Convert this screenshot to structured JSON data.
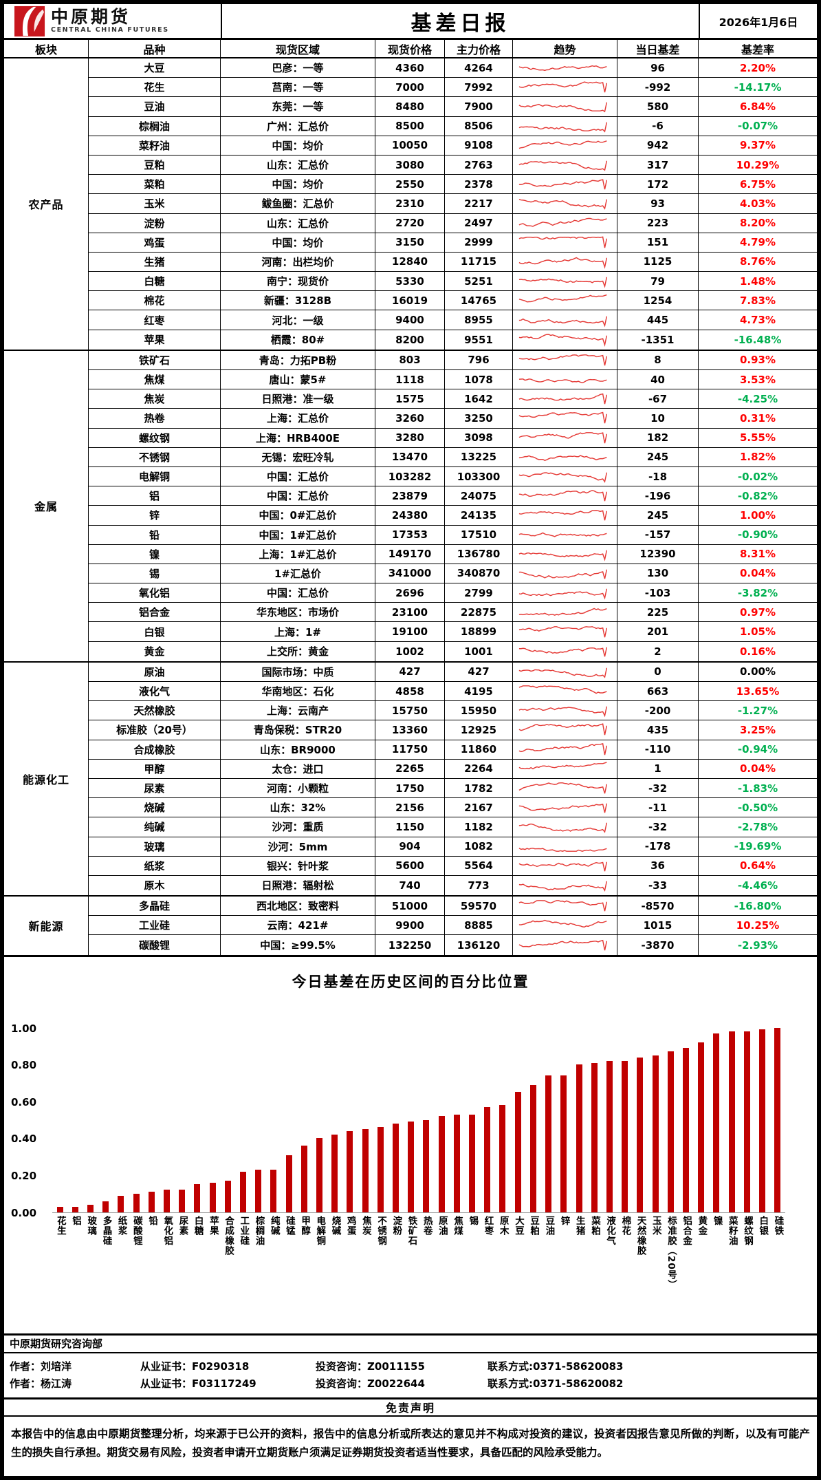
{
  "header": {
    "brand_cn": "中原期货",
    "brand_en": "CENTRAL CHINA FUTURES",
    "title": "基差日报",
    "date": "2026年1月6日"
  },
  "colors": {
    "up_red": "#FF0000",
    "down_green": "#00B050",
    "bar_red": "#C00000",
    "spark_red": "#E53935"
  },
  "table": {
    "columns": [
      "板块",
      "品种",
      "现货区域",
      "现货价格",
      "主力价格",
      "趋势",
      "当日基差",
      "基差率"
    ],
    "sectors": [
      {
        "name": "农产品",
        "rows": [
          {
            "variety": "大豆",
            "region": "巴彦：一等",
            "spot": "4360",
            "main": "4264",
            "basis": "96",
            "rate": "2.20%",
            "rate_color": "red"
          },
          {
            "variety": "花生",
            "region": "莒南：一等",
            "spot": "7000",
            "main": "7992",
            "basis": "-992",
            "rate": "-14.17%",
            "rate_color": "green"
          },
          {
            "variety": "豆油",
            "region": "东莞：一等",
            "spot": "8480",
            "main": "7900",
            "basis": "580",
            "rate": "6.84%",
            "rate_color": "red"
          },
          {
            "variety": "棕榈油",
            "region": "广州：汇总价",
            "spot": "8500",
            "main": "8506",
            "basis": "-6",
            "rate": "-0.07%",
            "rate_color": "green"
          },
          {
            "variety": "菜籽油",
            "region": "中国：均价",
            "spot": "10050",
            "main": "9108",
            "basis": "942",
            "rate": "9.37%",
            "rate_color": "red"
          },
          {
            "variety": "豆粕",
            "region": "山东：汇总价",
            "spot": "3080",
            "main": "2763",
            "basis": "317",
            "rate": "10.29%",
            "rate_color": "red"
          },
          {
            "variety": "菜粕",
            "region": "中国：均价",
            "spot": "2550",
            "main": "2378",
            "basis": "172",
            "rate": "6.75%",
            "rate_color": "red"
          },
          {
            "variety": "玉米",
            "region": "鲅鱼圈：汇总价",
            "spot": "2310",
            "main": "2217",
            "basis": "93",
            "rate": "4.03%",
            "rate_color": "red"
          },
          {
            "variety": "淀粉",
            "region": "山东：汇总价",
            "spot": "2720",
            "main": "2497",
            "basis": "223",
            "rate": "8.20%",
            "rate_color": "red"
          },
          {
            "variety": "鸡蛋",
            "region": "中国：均价",
            "spot": "3150",
            "main": "2999",
            "basis": "151",
            "rate": "4.79%",
            "rate_color": "red"
          },
          {
            "variety": "生猪",
            "region": "河南：出栏均价",
            "spot": "12840",
            "main": "11715",
            "basis": "1125",
            "rate": "8.76%",
            "rate_color": "red"
          },
          {
            "variety": "白糖",
            "region": "南宁：现货价",
            "spot": "5330",
            "main": "5251",
            "basis": "79",
            "rate": "1.48%",
            "rate_color": "red"
          },
          {
            "variety": "棉花",
            "region": "新疆：3128B",
            "spot": "16019",
            "main": "14765",
            "basis": "1254",
            "rate": "7.83%",
            "rate_color": "red"
          },
          {
            "variety": "红枣",
            "region": "河北：一级",
            "spot": "9400",
            "main": "8955",
            "basis": "445",
            "rate": "4.73%",
            "rate_color": "red"
          },
          {
            "variety": "苹果",
            "region": "栖霞：80#",
            "spot": "8200",
            "main": "9551",
            "basis": "-1351",
            "rate": "-16.48%",
            "rate_color": "green"
          }
        ]
      },
      {
        "name": "金属",
        "rows": [
          {
            "variety": "铁矿石",
            "region": "青岛：力拓PB粉",
            "spot": "803",
            "main": "796",
            "basis": "8",
            "rate": "0.93%",
            "rate_color": "red"
          },
          {
            "variety": "焦煤",
            "region": "唐山：蒙5#",
            "spot": "1118",
            "main": "1078",
            "basis": "40",
            "rate": "3.53%",
            "rate_color": "red"
          },
          {
            "variety": "焦炭",
            "region": "日照港：准一级",
            "spot": "1575",
            "main": "1642",
            "basis": "-67",
            "rate": "-4.25%",
            "rate_color": "green"
          },
          {
            "variety": "热卷",
            "region": "上海：汇总价",
            "spot": "3260",
            "main": "3250",
            "basis": "10",
            "rate": "0.31%",
            "rate_color": "red"
          },
          {
            "variety": "螺纹钢",
            "region": "上海：HRB400E",
            "spot": "3280",
            "main": "3098",
            "basis": "182",
            "rate": "5.55%",
            "rate_color": "red"
          },
          {
            "variety": "不锈钢",
            "region": "无锡：宏旺冷轧",
            "spot": "13470",
            "main": "13225",
            "basis": "245",
            "rate": "1.82%",
            "rate_color": "red"
          },
          {
            "variety": "电解铜",
            "region": "中国：汇总价",
            "spot": "103282",
            "main": "103300",
            "basis": "-18",
            "rate": "-0.02%",
            "rate_color": "green"
          },
          {
            "variety": "铝",
            "region": "中国：汇总价",
            "spot": "23879",
            "main": "24075",
            "basis": "-196",
            "rate": "-0.82%",
            "rate_color": "green"
          },
          {
            "variety": "锌",
            "region": "中国：0#汇总价",
            "spot": "24380",
            "main": "24135",
            "basis": "245",
            "rate": "1.00%",
            "rate_color": "red"
          },
          {
            "variety": "铅",
            "region": "中国：1#汇总价",
            "spot": "17353",
            "main": "17510",
            "basis": "-157",
            "rate": "-0.90%",
            "rate_color": "green"
          },
          {
            "variety": "镍",
            "region": "上海：1#汇总价",
            "spot": "149170",
            "main": "136780",
            "basis": "12390",
            "rate": "8.31%",
            "rate_color": "red"
          },
          {
            "variety": "锡",
            "region": "1#汇总价",
            "spot": "341000",
            "main": "340870",
            "basis": "130",
            "rate": "0.04%",
            "rate_color": "red"
          },
          {
            "variety": "氧化铝",
            "region": "中国：汇总价",
            "spot": "2696",
            "main": "2799",
            "basis": "-103",
            "rate": "-3.82%",
            "rate_color": "green"
          },
          {
            "variety": "铝合金",
            "region": "华东地区：市场价",
            "spot": "23100",
            "main": "22875",
            "basis": "225",
            "rate": "0.97%",
            "rate_color": "red"
          },
          {
            "variety": "白银",
            "region": "上海：1#",
            "spot": "19100",
            "main": "18899",
            "basis": "201",
            "rate": "1.05%",
            "rate_color": "red"
          },
          {
            "variety": "黄金",
            "region": "上交所：黄金",
            "spot": "1002",
            "main": "1001",
            "basis": "2",
            "rate": "0.16%",
            "rate_color": "red"
          }
        ]
      },
      {
        "name": "能源化工",
        "rows": [
          {
            "variety": "原油",
            "region": "国际市场：中质",
            "spot": "427",
            "main": "427",
            "basis": "0",
            "rate": "0.00%",
            "rate_color": "black"
          },
          {
            "variety": "液化气",
            "region": "华南地区：石化",
            "spot": "4858",
            "main": "4195",
            "basis": "663",
            "rate": "13.65%",
            "rate_color": "red"
          },
          {
            "variety": "天然橡胶",
            "region": "上海：云南产",
            "spot": "15750",
            "main": "15950",
            "basis": "-200",
            "rate": "-1.27%",
            "rate_color": "green"
          },
          {
            "variety": "标准胶（20号）",
            "region": "青岛保税：STR20",
            "spot": "13360",
            "main": "12925",
            "basis": "435",
            "rate": "3.25%",
            "rate_color": "red"
          },
          {
            "variety": "合成橡胶",
            "region": "山东：BR9000",
            "spot": "11750",
            "main": "11860",
            "basis": "-110",
            "rate": "-0.94%",
            "rate_color": "green"
          },
          {
            "variety": "甲醇",
            "region": "太仓：进口",
            "spot": "2265",
            "main": "2264",
            "basis": "1",
            "rate": "0.04%",
            "rate_color": "red"
          },
          {
            "variety": "尿素",
            "region": "河南：小颗粒",
            "spot": "1750",
            "main": "1782",
            "basis": "-32",
            "rate": "-1.83%",
            "rate_color": "green"
          },
          {
            "variety": "烧碱",
            "region": "山东：32%",
            "spot": "2156",
            "main": "2167",
            "basis": "-11",
            "rate": "-0.50%",
            "rate_color": "green"
          },
          {
            "variety": "纯碱",
            "region": "沙河：重质",
            "spot": "1150",
            "main": "1182",
            "basis": "-32",
            "rate": "-2.78%",
            "rate_color": "green"
          },
          {
            "variety": "玻璃",
            "region": "沙河：5mm",
            "spot": "904",
            "main": "1082",
            "basis": "-178",
            "rate": "-19.69%",
            "rate_color": "green"
          },
          {
            "variety": "纸浆",
            "region": "银兴：针叶浆",
            "spot": "5600",
            "main": "5564",
            "basis": "36",
            "rate": "0.64%",
            "rate_color": "red"
          },
          {
            "variety": "原木",
            "region": "日照港：辐射松",
            "spot": "740",
            "main": "773",
            "basis": "-33",
            "rate": "-4.46%",
            "rate_color": "green"
          }
        ]
      },
      {
        "name": "新能源",
        "rows": [
          {
            "variety": "多晶硅",
            "region": "西北地区：致密料",
            "spot": "51000",
            "main": "59570",
            "basis": "-8570",
            "rate": "-16.80%",
            "rate_color": "green"
          },
          {
            "variety": "工业硅",
            "region": "云南：421#",
            "spot": "9900",
            "main": "8885",
            "basis": "1015",
            "rate": "10.25%",
            "rate_color": "red"
          },
          {
            "variety": "碳酸锂",
            "region": "中国：≥99.5%",
            "spot": "132250",
            "main": "136120",
            "basis": "-3870",
            "rate": "-2.93%",
            "rate_color": "green"
          }
        ]
      }
    ]
  },
  "chart_data": {
    "type": "bar",
    "title": "今日基差在历史区间的百分比位置",
    "xlabel": "",
    "ylabel": "",
    "ylim": [
      0,
      1
    ],
    "yticks": [
      "0.00",
      "0.20",
      "0.40",
      "0.60",
      "0.80",
      "1.00"
    ],
    "grid": false,
    "legend": "none",
    "bar_color": "#C00000",
    "categories": [
      "花生",
      "铝",
      "玻璃",
      "多晶硅",
      "纸浆",
      "碳酸锂",
      "铅",
      "氧化铝",
      "尿素",
      "白糖",
      "苹果",
      "合成橡胶",
      "工业硅",
      "棕榈油",
      "纯碱",
      "硅锰",
      "甲醇",
      "电解铜",
      "烧碱",
      "鸡蛋",
      "焦炭",
      "不锈钢",
      "淀粉",
      "铁矿石",
      "热卷",
      "原油",
      "焦煤",
      "锡",
      "红枣",
      "原木",
      "大豆",
      "豆粕",
      "豆油",
      "锌",
      "生猪",
      "菜粕",
      "液化气",
      "棉花",
      "天然橡胶",
      "玉米",
      "标准胶（20号）",
      "铝合金",
      "黄金",
      "镍",
      "菜籽油",
      "螺纹钢",
      "白银",
      "硅铁"
    ],
    "values": [
      0.03,
      0.03,
      0.04,
      0.06,
      0.09,
      0.1,
      0.11,
      0.12,
      0.12,
      0.15,
      0.16,
      0.17,
      0.22,
      0.23,
      0.23,
      0.31,
      0.36,
      0.4,
      0.42,
      0.44,
      0.45,
      0.46,
      0.48,
      0.49,
      0.5,
      0.52,
      0.53,
      0.53,
      0.57,
      0.58,
      0.65,
      0.69,
      0.74,
      0.74,
      0.8,
      0.81,
      0.82,
      0.82,
      0.84,
      0.85,
      0.87,
      0.89,
      0.92,
      0.97,
      0.98,
      0.98,
      0.99,
      1.0
    ]
  },
  "footer": {
    "department": "中原期货研究咨询部",
    "authors": [
      [
        "作者：刘培洋",
        "从业证书：F0290318",
        "投资咨询：Z0011155",
        "联系方式:0371-58620083"
      ],
      [
        "作者：杨江涛",
        "从业证书：F03117249",
        "投资咨询：Z0022644",
        "联系方式:0371-58620082"
      ]
    ],
    "disclaimer_title": "免责声明",
    "disclaimer": "本报告中的信息由中原期货整理分析，均来源于已公开的资料，报告中的信息分析或所表达的意见并不构成对投资的建议，投资者因报告意见所做的判断，以及有可能产生的损失自行承担。期货交易有风险，投资者申请开立期货账户须满足证券期货投资者适当性要求，具备匹配的风险承受能力。"
  }
}
